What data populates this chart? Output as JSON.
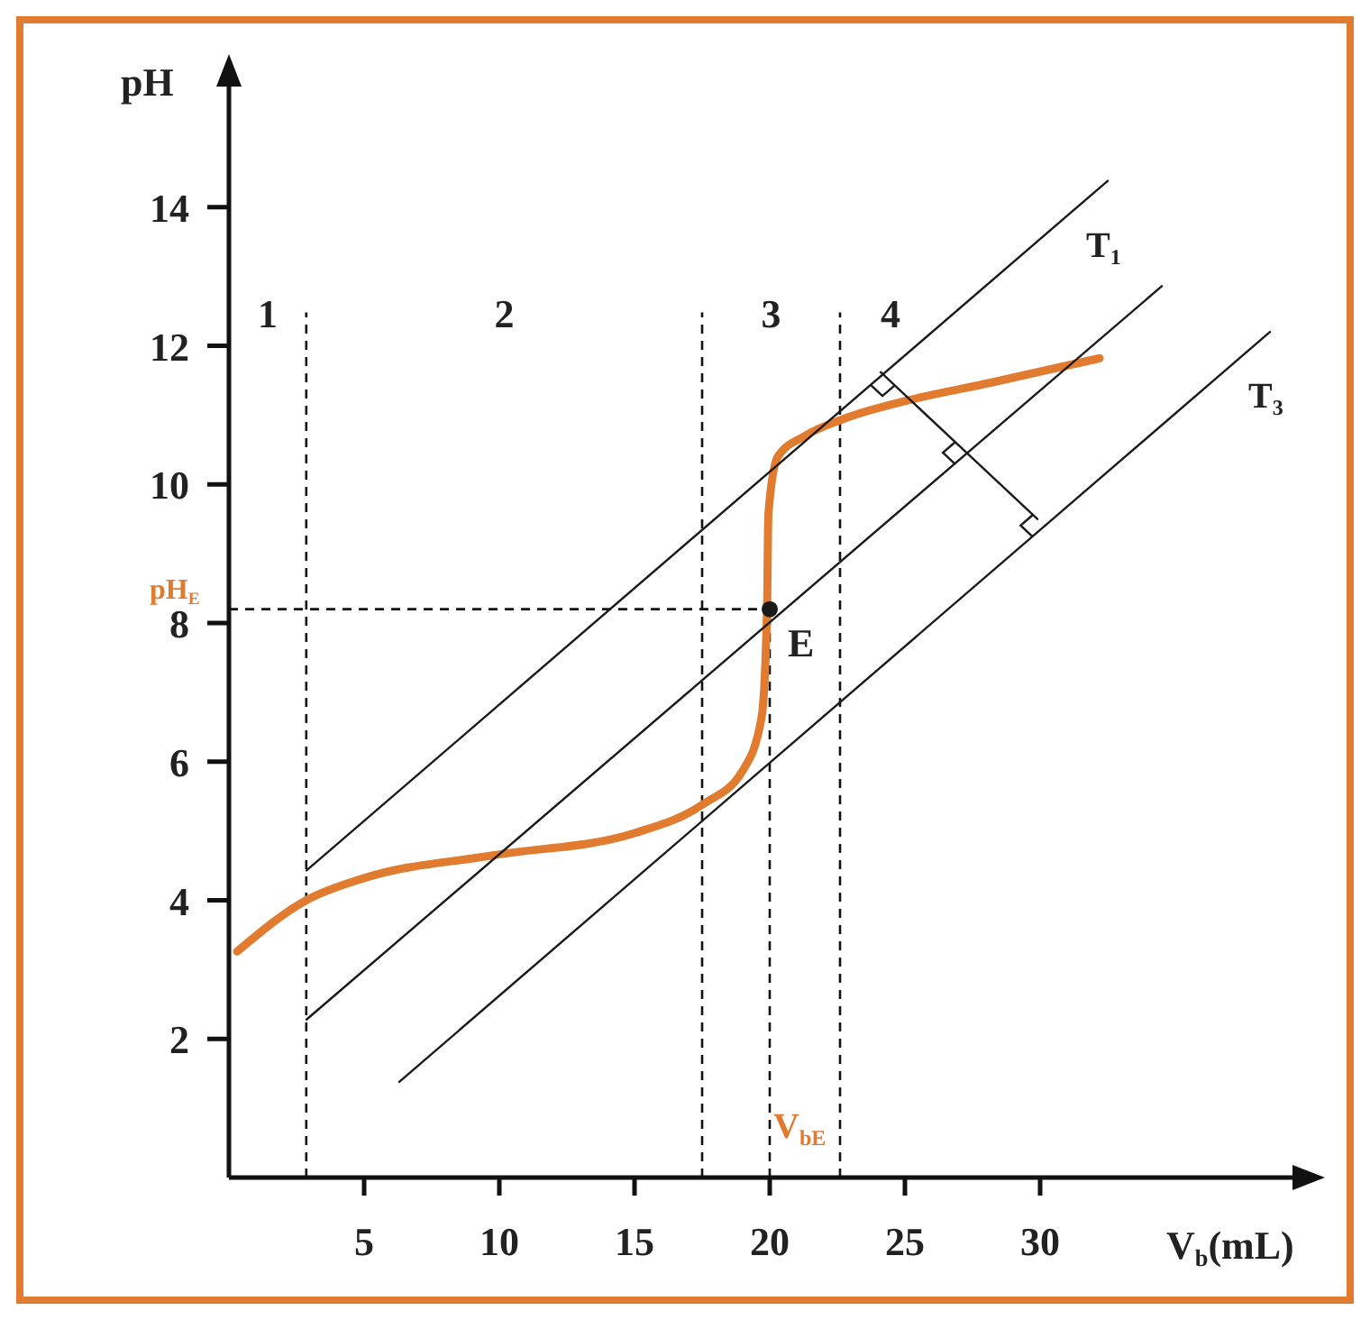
{
  "chart_data": {
    "type": "line",
    "xlabel": "V$_{b}$(mL)",
    "ylabel": "pH",
    "xlim": [
      0,
      40
    ],
    "ylim": [
      0,
      16
    ],
    "xticks": [
      5,
      10,
      15,
      20,
      25,
      30
    ],
    "yticks": [
      2,
      4,
      6,
      8,
      10,
      12,
      14
    ],
    "grid": false,
    "legend": false,
    "series": [
      {
        "color": "#e07b2f",
        "x": [
          0.3,
          2.86,
          5,
          9.8,
          15,
          17.55,
          19,
          19.7,
          19.9,
          19.95,
          20.3,
          21.3,
          22.7,
          25.2,
          28.2,
          32.2
        ],
        "values": [
          3.26,
          4.0,
          4.32,
          4.65,
          4.97,
          5.39,
          5.87,
          6.64,
          8.18,
          9.57,
          10.4,
          10.7,
          10.94,
          11.22,
          11.47,
          11.82
        ]
      },
      {
        "type": "line",
        "name": "T$_{1}$",
        "color": "#1a1a1a",
        "x": [
          2.87,
          32.5
        ],
        "values": [
          4.43,
          14.38
        ]
      },
      {
        "type": "line",
        "color": "#1a1a1a",
        "x": [
          2.87,
          34.5
        ],
        "values": [
          2.28,
          12.86
        ]
      },
      {
        "type": "line",
        "name": "T$_{3}$",
        "color": "#1a1a1a",
        "x": [
          6.3,
          38.5
        ],
        "values": [
          1.38,
          12.2
        ]
      },
      {
        "type": "line",
        "color": "#1a1a1a",
        "x": [
          24.1,
          29.9
        ],
        "values": [
          11.62,
          9.5
        ]
      },
      {
        "type": "scatter",
        "color": "#1a1a1a",
        "x": [
          20
        ],
        "values": [
          8.2
        ]
      }
    ],
    "ref_lines": [
      {
        "axis": "x",
        "value": 2.86,
        "line_style": "dashed"
      },
      {
        "axis": "x",
        "value": 17.5,
        "line_style": "dashed"
      },
      {
        "axis": "x",
        "value": 22.6,
        "line_style": "dashed"
      },
      {
        "axis": "x",
        "value": 20,
        "label": "V$_{bE}$",
        "line_style": "dashed"
      },
      {
        "axis": "y",
        "value": 8.2,
        "label": "pH$_{E}$",
        "line_style": "dashed"
      }
    ],
    "annotations": [
      {
        "text": "E",
        "x": 20,
        "y": 8.2
      },
      "1",
      "2",
      "3",
      "4"
    ]
  }
}
